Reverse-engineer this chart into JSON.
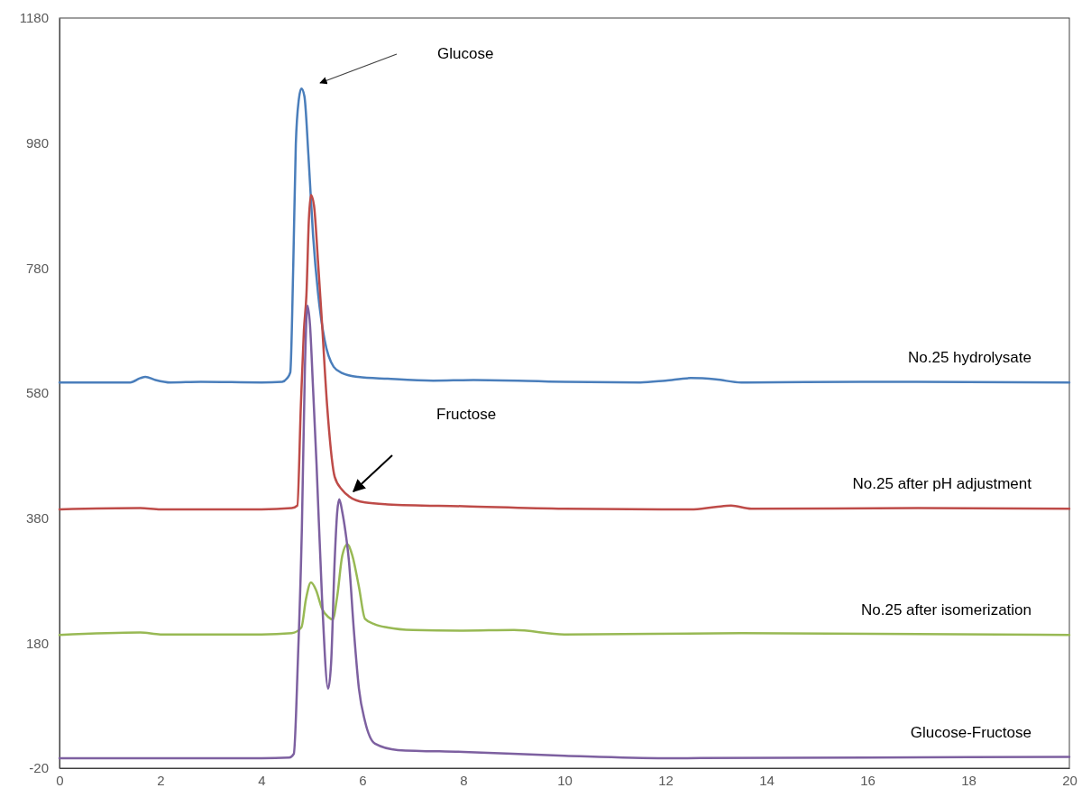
{
  "chart_data": {
    "type": "line",
    "xlim": [
      0,
      20
    ],
    "xticks": [
      0,
      2,
      4,
      6,
      8,
      10,
      12,
      14,
      16,
      18,
      20
    ],
    "ylim": [
      -20,
      1180
    ],
    "yticks": [
      -20,
      180,
      380,
      580,
      780,
      980,
      1180
    ],
    "grid": false,
    "legend": false,
    "marker": "none",
    "line_style": "solid",
    "annotations": [
      "Glucose",
      "Fructose"
    ],
    "series": [
      {
        "name": "No.25 hydrolysate",
        "color": "#4a7ebb",
        "x": [
          0,
          1.4,
          1.6,
          1.7,
          1.9,
          2.2,
          2.8,
          4,
          4.41,
          4.5,
          4.57,
          4.63,
          4.68,
          4.74,
          4.79,
          4.85,
          4.93,
          5.02,
          5.12,
          5.25,
          5.43,
          5.6,
          5.91,
          6.5,
          7.4,
          8.2,
          10,
          11.5,
          12,
          12.5,
          13,
          13.5,
          16,
          20
        ],
        "values": [
          597,
          597,
          604,
          606,
          601,
          597,
          598,
          597,
          598,
          603,
          613,
          786,
          978,
          1050,
          1067,
          1055,
          960,
          834,
          740,
          665,
          622,
          612,
          606,
          603,
          600,
          601,
          598,
          597,
          600,
          604,
          602,
          597,
          598,
          597
        ]
      },
      {
        "name": "No.25 after pH adjustment",
        "color": "#be4b48",
        "x": [
          0,
          1.6,
          2,
          4,
          4.6,
          4.71,
          4.78,
          4.84,
          4.89,
          4.94,
          4.98,
          5.04,
          5.12,
          5.2,
          5.3,
          5.45,
          5.6,
          5.73,
          6.05,
          6.5,
          8,
          10,
          12.5,
          13,
          13.3,
          13.7,
          17,
          20
        ],
        "values": [
          394,
          396,
          394,
          394,
          396,
          400,
          560,
          680,
          737,
          860,
          897,
          880,
          790,
          690,
          560,
          446,
          425,
          415,
          405,
          402,
          399,
          395,
          394,
          398,
          400,
          395,
          396,
          395
        ]
      },
      {
        "name": "No.25 after isomerization",
        "color": "#98b954",
        "x": [
          0,
          1.6,
          2,
          4,
          4.6,
          4.79,
          4.88,
          4.98,
          5.08,
          5.2,
          5.32,
          5.41,
          5.5,
          5.6,
          5.7,
          5.8,
          5.93,
          6.05,
          6.25,
          6.5,
          7,
          8,
          9,
          10,
          13.5,
          20
        ],
        "values": [
          193,
          197,
          194,
          194,
          196,
          205,
          250,
          277,
          265,
          235,
          222,
          218,
          255,
          320,
          338,
          320,
          270,
          219,
          210,
          205,
          201,
          200,
          201,
          194,
          196,
          193
        ]
      },
      {
        "name": "Glucose-Fructose",
        "color": "#7d60a0",
        "x": [
          0,
          4,
          4.55,
          4.64,
          4.72,
          4.8,
          4.86,
          4.91,
          4.96,
          5.02,
          5.09,
          5.2,
          5.32,
          5.38,
          5.45,
          5.5,
          5.54,
          5.6,
          5.66,
          5.73,
          5.83,
          5.93,
          6.05,
          6.25,
          6.7,
          8,
          10,
          12,
          16,
          20
        ],
        "values": [
          -4,
          -4,
          -3,
          3,
          150,
          364,
          620,
          720,
          690,
          590,
          467,
          250,
          107,
          150,
          313,
          390,
          410,
          390,
          360,
          313,
          200,
          107,
          55,
          19,
          9,
          6,
          0,
          -4,
          -3,
          -2
        ]
      }
    ]
  }
}
